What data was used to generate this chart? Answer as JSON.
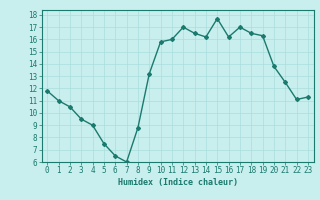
{
  "x": [
    0,
    1,
    2,
    3,
    4,
    5,
    6,
    7,
    8,
    9,
    10,
    11,
    12,
    13,
    14,
    15,
    16,
    17,
    18,
    19,
    20,
    21,
    22,
    23
  ],
  "y": [
    11.8,
    11.0,
    10.5,
    9.5,
    9.0,
    7.5,
    6.5,
    6.0,
    8.8,
    13.2,
    15.8,
    16.0,
    17.0,
    16.5,
    16.2,
    17.7,
    16.2,
    17.0,
    16.5,
    16.3,
    13.8,
    12.5,
    11.1,
    11.3
  ],
  "xlim": [
    -0.5,
    23.5
  ],
  "ylim": [
    6,
    18.4
  ],
  "yticks": [
    6,
    7,
    8,
    9,
    10,
    11,
    12,
    13,
    14,
    15,
    16,
    17,
    18
  ],
  "xticks": [
    0,
    1,
    2,
    3,
    4,
    5,
    6,
    7,
    8,
    9,
    10,
    11,
    12,
    13,
    14,
    15,
    16,
    17,
    18,
    19,
    20,
    21,
    22,
    23
  ],
  "xlabel": "Humidex (Indice chaleur)",
  "line_color": "#1a7a6e",
  "marker": "D",
  "marker_size": 2,
  "bg_color": "#c8eeee",
  "grid_color": "#aadddd",
  "xlabel_color": "#1a7a6e",
  "tick_label_color": "#1a7a6e",
  "font_size_axis": 5.5,
  "font_size_xlabel": 6.0,
  "linewidth": 1.0
}
